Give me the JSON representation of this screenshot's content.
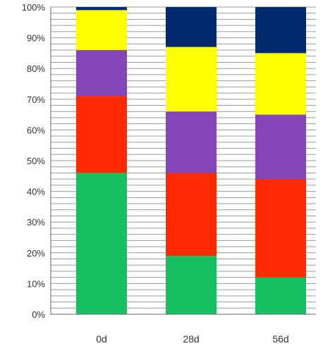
{
  "chart_data": {
    "type": "bar",
    "stacked": true,
    "percent": true,
    "categories": [
      "0d",
      "28d",
      "56d"
    ],
    "series": [
      {
        "color": "#16c060",
        "values": [
          46,
          19,
          12
        ]
      },
      {
        "color": "#ff2a00",
        "values": [
          25,
          27,
          32
        ]
      },
      {
        "color": "#8445b8",
        "values": [
          15,
          20,
          21
        ]
      },
      {
        "color": "#ffff00",
        "values": [
          13,
          21,
          20
        ]
      },
      {
        "color": "#002b6e",
        "values": [
          1,
          13,
          15
        ]
      }
    ],
    "ylim": [
      0,
      100
    ],
    "yticks": [
      "0%",
      "10%",
      "20%",
      "30%",
      "40%",
      "50%",
      "60%",
      "70%",
      "80%",
      "90%",
      "100%"
    ],
    "grid": true,
    "legend": "none"
  }
}
